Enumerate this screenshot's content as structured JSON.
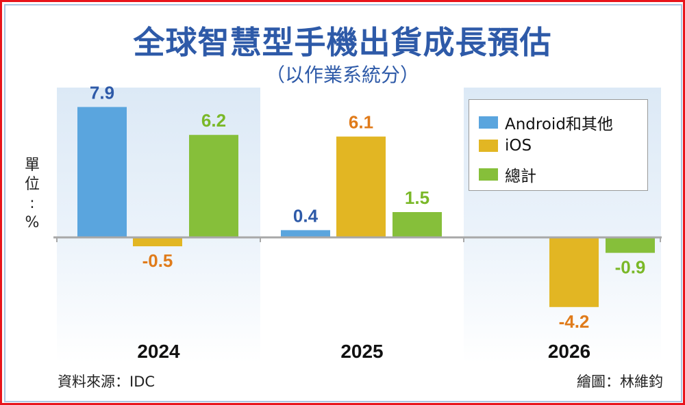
{
  "chart_data": {
    "type": "bar",
    "title": "全球智慧型手機出貨成長預估",
    "subtitle": "（以作業系統分）",
    "ylabel": "單位：%",
    "categories": [
      "2024",
      "2025",
      "2026"
    ],
    "series": [
      {
        "name": "Android和其他",
        "color": "#5aa5de",
        "label_color": "#2e5aa8",
        "values": [
          7.9,
          0.4,
          null
        ]
      },
      {
        "name": "iOS",
        "color": "#e2b623",
        "label_color": "#e07b1a",
        "values": [
          -0.5,
          6.1,
          -4.2
        ]
      },
      {
        "name": "總計",
        "color": "#86bf3a",
        "label_color": "#7ab828",
        "values": [
          6.2,
          1.5,
          -0.9
        ]
      }
    ],
    "ylim": [
      -5,
      8.5
    ],
    "legend_position": "top-right",
    "source": "資料來源：IDC",
    "credit": "繪圖：林維鈞"
  }
}
